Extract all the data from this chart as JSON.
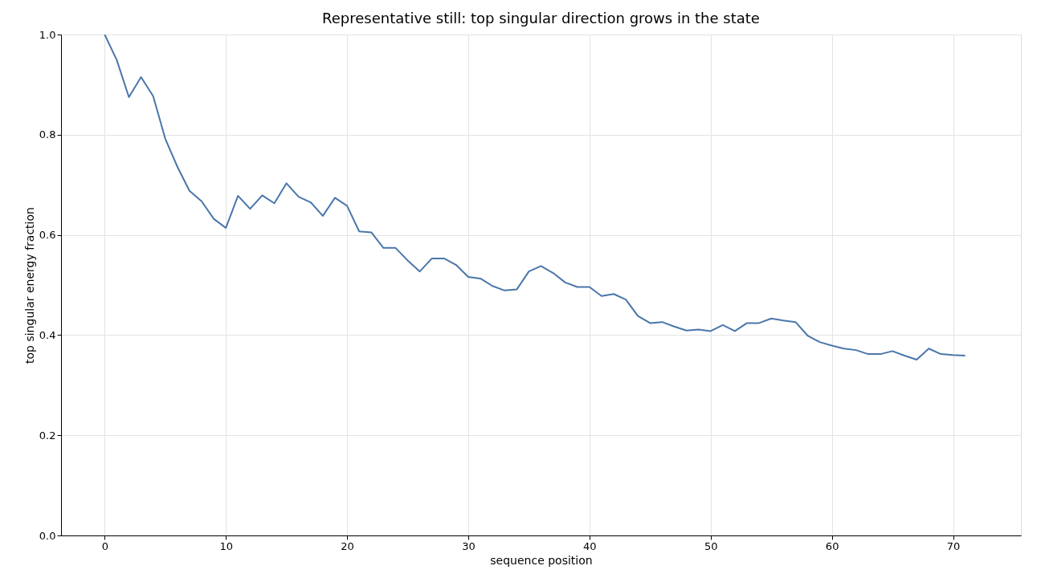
{
  "chart_data": {
    "type": "line",
    "title": "Representative still: top singular direction grows in the state",
    "xlabel": "sequence position",
    "ylabel": "top singular energy fraction",
    "x": [
      0,
      1,
      2,
      3,
      4,
      5,
      6,
      7,
      8,
      9,
      10,
      11,
      12,
      13,
      14,
      15,
      16,
      17,
      18,
      19,
      20,
      21,
      22,
      23,
      24,
      25,
      26,
      27,
      28,
      29,
      30,
      31,
      32,
      33,
      34,
      35,
      36,
      37,
      38,
      39,
      40,
      41,
      42,
      43,
      44,
      45,
      46,
      47,
      48,
      49,
      50,
      51,
      52,
      53,
      54,
      55,
      56,
      57,
      58,
      59,
      60,
      61,
      62,
      63,
      64,
      65,
      66,
      67,
      68,
      69,
      70,
      71
    ],
    "series": [
      {
        "color": "#4a76aa",
        "values": [
          1.0,
          0.949,
          0.875,
          0.915,
          0.877,
          0.792,
          0.736,
          0.688,
          0.667,
          0.632,
          0.614,
          0.678,
          0.652,
          0.679,
          0.663,
          0.703,
          0.676,
          0.665,
          0.638,
          0.674,
          0.658,
          0.607,
          0.605,
          0.574,
          0.574,
          0.549,
          0.527,
          0.553,
          0.553,
          0.54,
          0.516,
          0.513,
          0.498,
          0.489,
          0.491,
          0.527,
          0.538,
          0.524,
          0.505,
          0.496,
          0.496,
          0.478,
          0.482,
          0.471,
          0.438,
          0.424,
          0.426,
          0.417,
          0.409,
          0.411,
          0.408,
          0.42,
          0.408,
          0.424,
          0.424,
          0.433,
          0.429,
          0.426,
          0.399,
          0.386,
          0.379,
          0.373,
          0.37,
          0.362,
          0.362,
          0.368,
          0.359,
          0.351,
          0.373,
          0.362,
          0.36,
          0.359
        ]
      }
    ],
    "xlim": [
      -3.6,
      75.6
    ],
    "ylim": [
      0,
      1
    ],
    "xticks": [
      0,
      10,
      20,
      30,
      40,
      50,
      60,
      70
    ],
    "yticks": [
      {
        "value": 0,
        "label": "0.0"
      },
      {
        "value": 0.2,
        "label": "0.2"
      },
      {
        "value": 0.4,
        "label": "0.4"
      },
      {
        "value": 0.6,
        "label": "0.6"
      },
      {
        "value": 0.8,
        "label": "0.8"
      },
      {
        "value": 1,
        "label": "1.0"
      }
    ],
    "grid": true,
    "marker": "none",
    "line_style": "solid"
  }
}
